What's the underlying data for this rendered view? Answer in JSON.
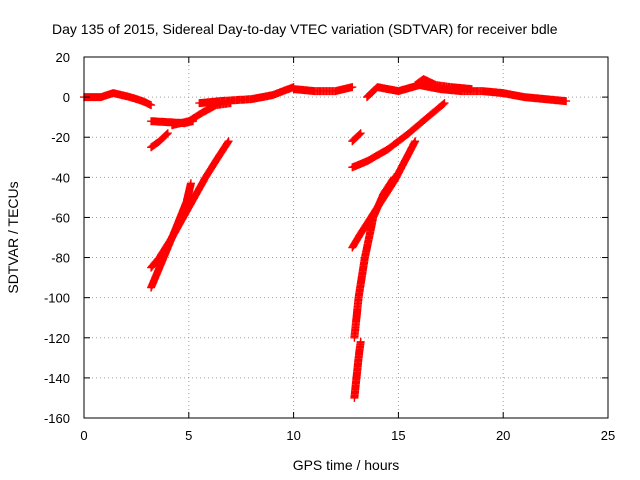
{
  "chart_data": {
    "type": "scatter",
    "title": "Day 135 of 2015, Sidereal Day-to-day VTEC variation (SDTVAR) for receiver bdle",
    "xlabel": "GPS time / hours",
    "ylabel": "SDTVAR / TECUs",
    "xlim": [
      0,
      25
    ],
    "ylim": [
      -160,
      20
    ],
    "xticks": [
      0,
      5,
      10,
      15,
      20,
      25
    ],
    "yticks": [
      20,
      0,
      -20,
      -40,
      -60,
      -80,
      -100,
      -120,
      -140,
      -160
    ],
    "grid": true,
    "marker": "+",
    "color": "#ff0000",
    "segments": [
      [
        [
          0.0,
          0.0
        ],
        [
          0.8,
          0.0
        ],
        [
          1.4,
          2.0
        ],
        [
          2.2,
          0.0
        ],
        [
          2.8,
          -2.0
        ],
        [
          3.2,
          -4.0
        ]
      ],
      [
        [
          3.2,
          -25.0
        ],
        [
          3.6,
          -22.0
        ],
        [
          4.0,
          -18.0
        ]
      ],
      [
        [
          3.2,
          -12.0
        ],
        [
          4.0,
          -12.5
        ],
        [
          4.8,
          -13.0
        ],
        [
          5.2,
          -12.0
        ]
      ],
      [
        [
          4.2,
          -14.0
        ],
        [
          5.0,
          -12.0
        ],
        [
          5.6,
          -8.0
        ],
        [
          6.3,
          -4.0
        ],
        [
          7.0,
          -3.0
        ]
      ],
      [
        [
          5.5,
          -3.0
        ],
        [
          6.5,
          -2.0
        ],
        [
          8.0,
          -1.0
        ],
        [
          9.0,
          1.0
        ],
        [
          10.0,
          5.0
        ]
      ],
      [
        [
          10.0,
          4.0
        ],
        [
          11.0,
          3.0
        ],
        [
          12.0,
          3.0
        ],
        [
          12.8,
          5.0
        ]
      ],
      [
        [
          3.2,
          -95.0
        ],
        [
          3.8,
          -80.0
        ],
        [
          4.4,
          -65.0
        ],
        [
          4.9,
          -52.0
        ],
        [
          5.1,
          -43.0
        ]
      ],
      [
        [
          3.2,
          -85.0
        ],
        [
          3.6,
          -80.0
        ],
        [
          4.2,
          -70.0
        ],
        [
          5.0,
          -55.0
        ],
        [
          5.8,
          -40.0
        ],
        [
          6.4,
          -30.0
        ],
        [
          6.9,
          -22.0
        ]
      ],
      [
        [
          12.8,
          -22.0
        ],
        [
          13.2,
          -18.0
        ]
      ],
      [
        [
          12.8,
          -35.0
        ],
        [
          13.5,
          -32.0
        ],
        [
          14.5,
          -26.0
        ],
        [
          15.5,
          -18.0
        ],
        [
          16.4,
          -10.0
        ],
        [
          17.2,
          -3.0
        ]
      ],
      [
        [
          12.8,
          -75.0
        ],
        [
          13.2,
          -68.0
        ],
        [
          14.0,
          -55.0
        ],
        [
          14.8,
          -42.0
        ],
        [
          15.8,
          -22.0
        ]
      ],
      [
        [
          12.9,
          -120.0
        ],
        [
          13.1,
          -100.0
        ],
        [
          13.4,
          -80.0
        ],
        [
          13.8,
          -60.0
        ],
        [
          14.3,
          -48.0
        ],
        [
          14.8,
          -40.0
        ]
      ],
      [
        [
          12.9,
          -150.0
        ],
        [
          13.0,
          -140.0
        ],
        [
          13.1,
          -130.0
        ],
        [
          13.2,
          -122.0
        ]
      ],
      [
        [
          13.5,
          0.0
        ],
        [
          14.0,
          5.0
        ],
        [
          15.0,
          3.0
        ],
        [
          16.0,
          6.0
        ],
        [
          17.0,
          4.0
        ],
        [
          18.0,
          3.0
        ],
        [
          19.0,
          3.0
        ],
        [
          20.0,
          2.0
        ],
        [
          21.0,
          0.0
        ],
        [
          22.0,
          -1.0
        ],
        [
          23.0,
          -2.0
        ]
      ],
      [
        [
          15.8,
          6.0
        ],
        [
          16.2,
          9.0
        ],
        [
          16.8,
          6.0
        ],
        [
          17.5,
          5.0
        ],
        [
          18.5,
          4.0
        ]
      ]
    ]
  }
}
